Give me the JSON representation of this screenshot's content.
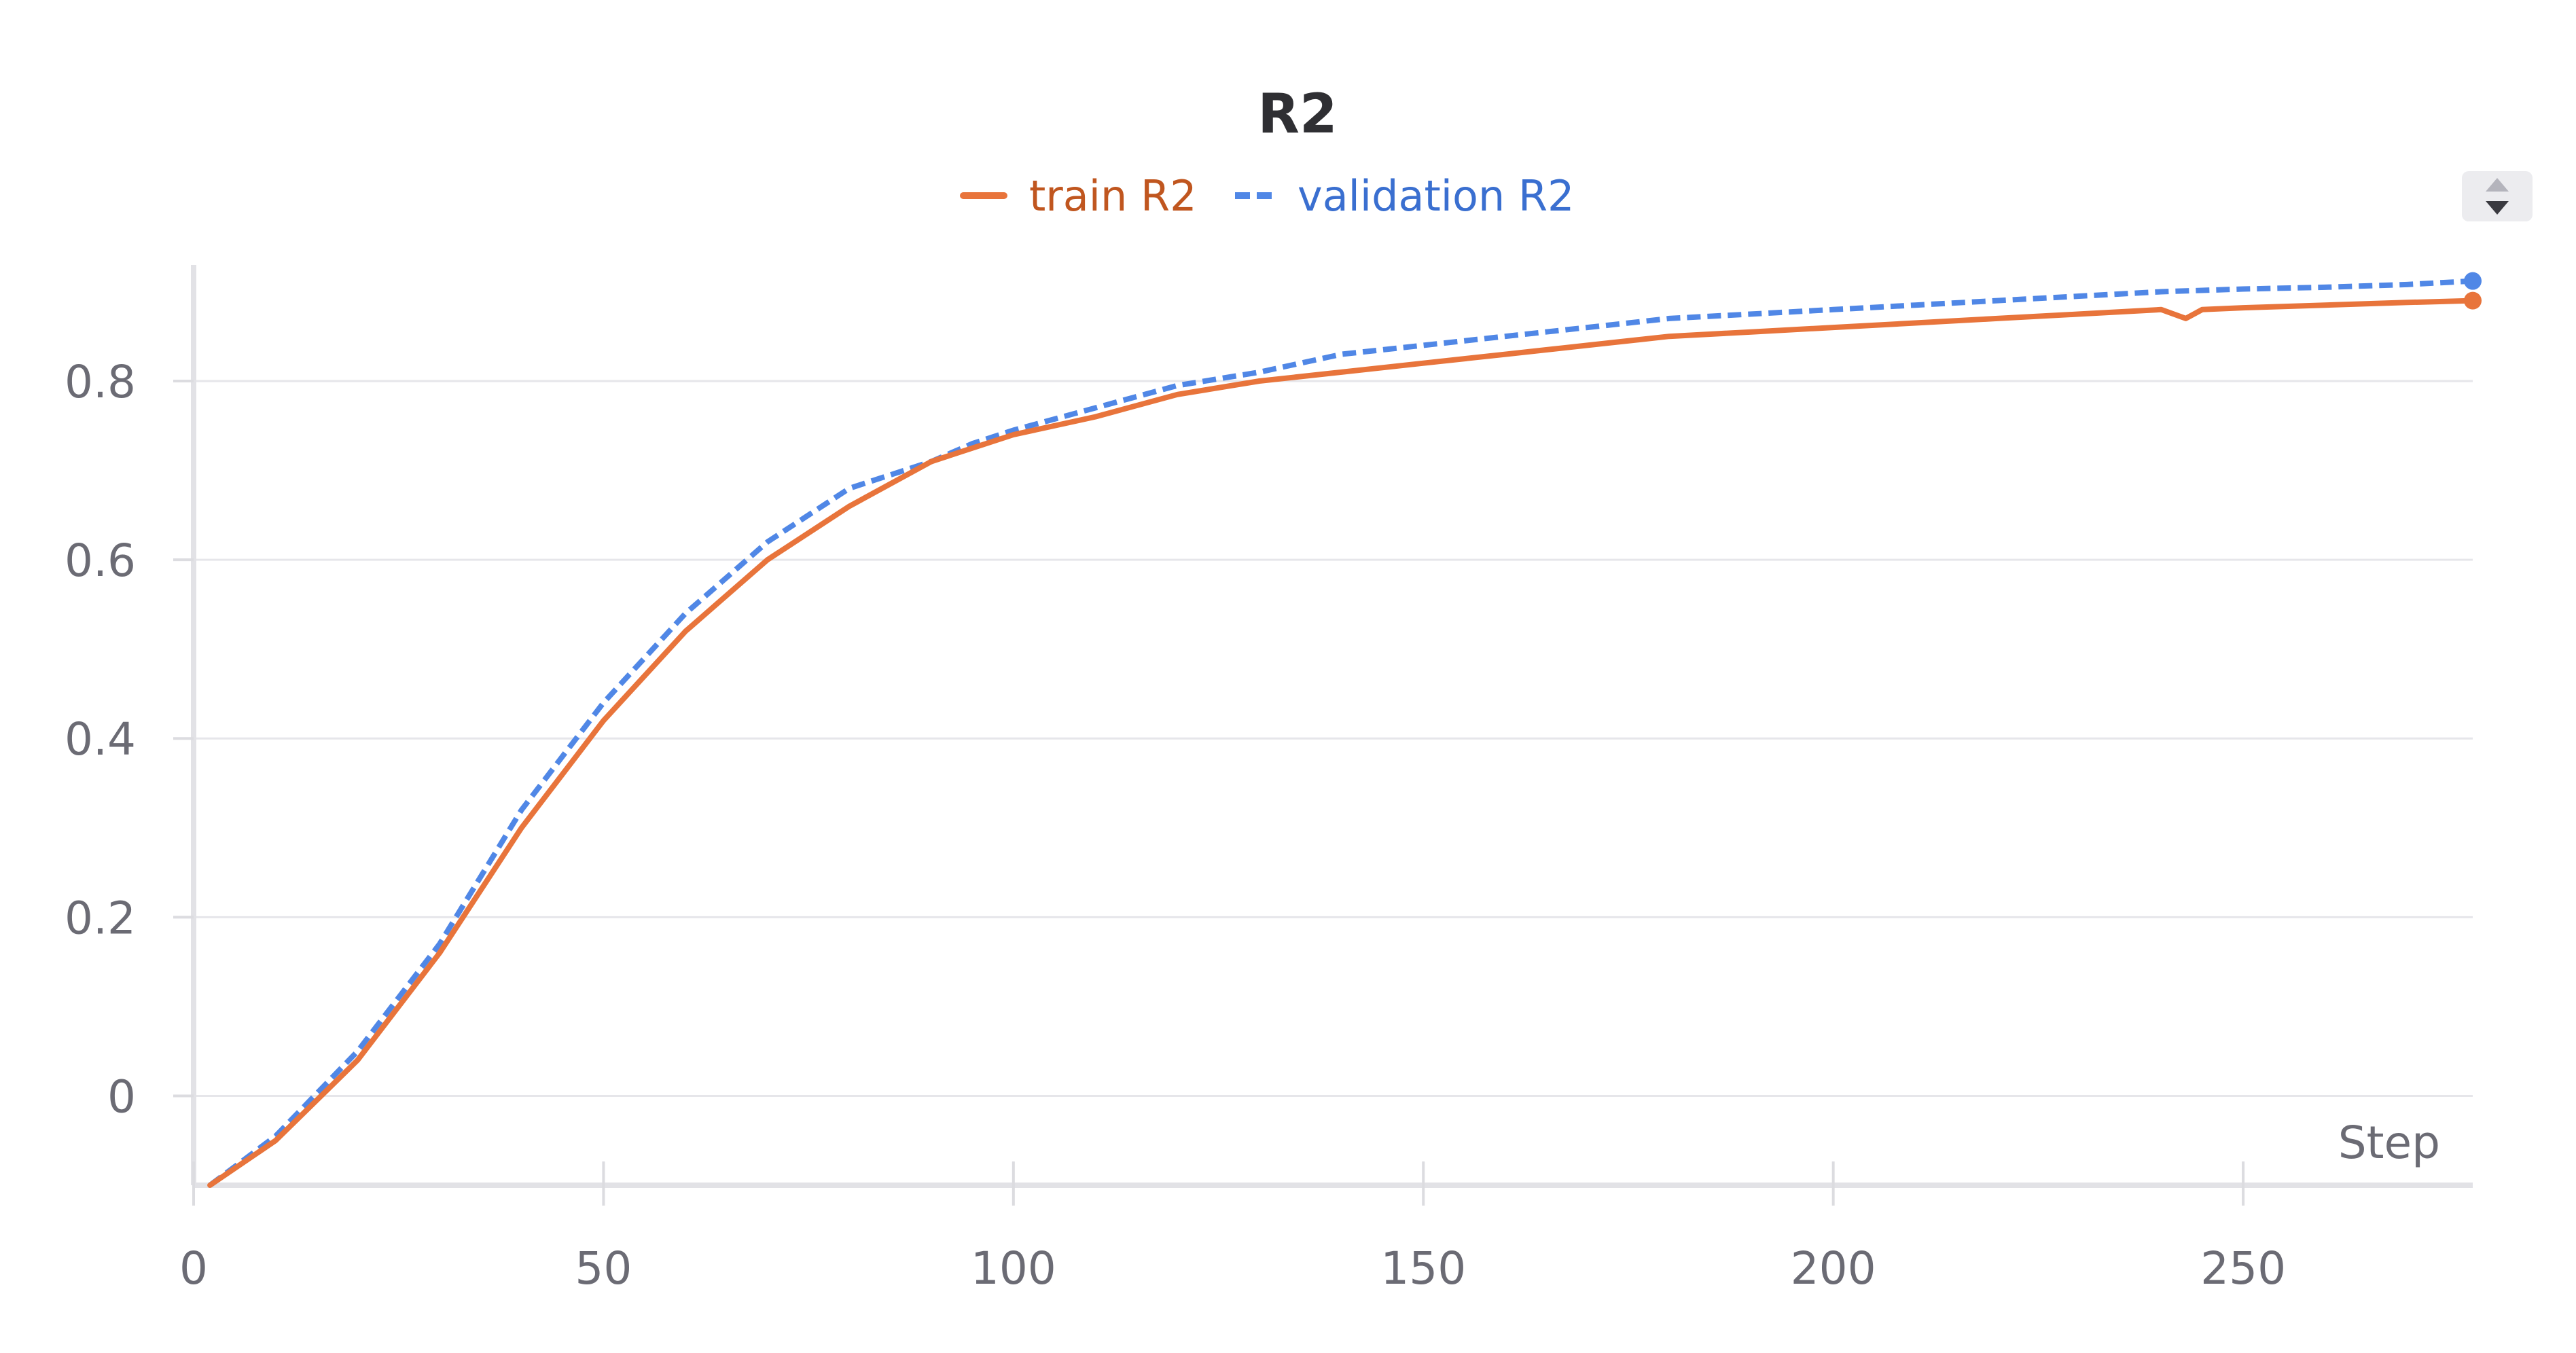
{
  "chart_data": {
    "type": "line",
    "title": "R2",
    "xlabel": "Step",
    "ylabel": "",
    "xlim": [
      0,
      278
    ],
    "ylim": [
      -0.1,
      0.93
    ],
    "xticks": [
      0,
      50,
      100,
      150,
      200,
      250
    ],
    "yticks": [
      0,
      0.2,
      0.4,
      0.6,
      0.8
    ],
    "xtick_labels": [
      "0",
      "50",
      "100",
      "150",
      "200",
      "250"
    ],
    "ytick_labels": [
      "0",
      "0.2",
      "0.4",
      "0.6",
      "0.8"
    ],
    "grid": true,
    "legend_position": "top-center",
    "series": [
      {
        "name": "train R2",
        "color": "#e8743b",
        "style": "solid",
        "x": [
          2,
          10,
          20,
          30,
          40,
          50,
          60,
          70,
          80,
          90,
          100,
          110,
          120,
          130,
          140,
          150,
          160,
          170,
          180,
          190,
          200,
          210,
          220,
          230,
          240,
          243,
          245,
          250,
          260,
          270,
          278
        ],
        "values": [
          -0.1,
          -0.05,
          0.04,
          0.16,
          0.3,
          0.42,
          0.52,
          0.6,
          0.66,
          0.71,
          0.74,
          0.76,
          0.785,
          0.8,
          0.81,
          0.82,
          0.83,
          0.84,
          0.85,
          0.855,
          0.86,
          0.865,
          0.87,
          0.875,
          0.88,
          0.87,
          0.88,
          0.882,
          0.885,
          0.888,
          0.89
        ]
      },
      {
        "name": "validation R2",
        "color": "#5087e6",
        "style": "dashed",
        "x": [
          2,
          10,
          20,
          30,
          40,
          50,
          60,
          70,
          80,
          90,
          95,
          100,
          110,
          120,
          130,
          140,
          150,
          160,
          170,
          180,
          190,
          200,
          210,
          220,
          230,
          240,
          250,
          260,
          270,
          278
        ],
        "values": [
          -0.1,
          -0.045,
          0.05,
          0.17,
          0.32,
          0.44,
          0.54,
          0.62,
          0.68,
          0.71,
          0.73,
          0.745,
          0.77,
          0.795,
          0.81,
          0.83,
          0.84,
          0.85,
          0.86,
          0.87,
          0.875,
          0.88,
          0.885,
          0.89,
          0.895,
          0.9,
          0.903,
          0.905,
          0.908,
          0.912
        ]
      }
    ]
  },
  "ui": {
    "sort_control": "▲▼"
  }
}
